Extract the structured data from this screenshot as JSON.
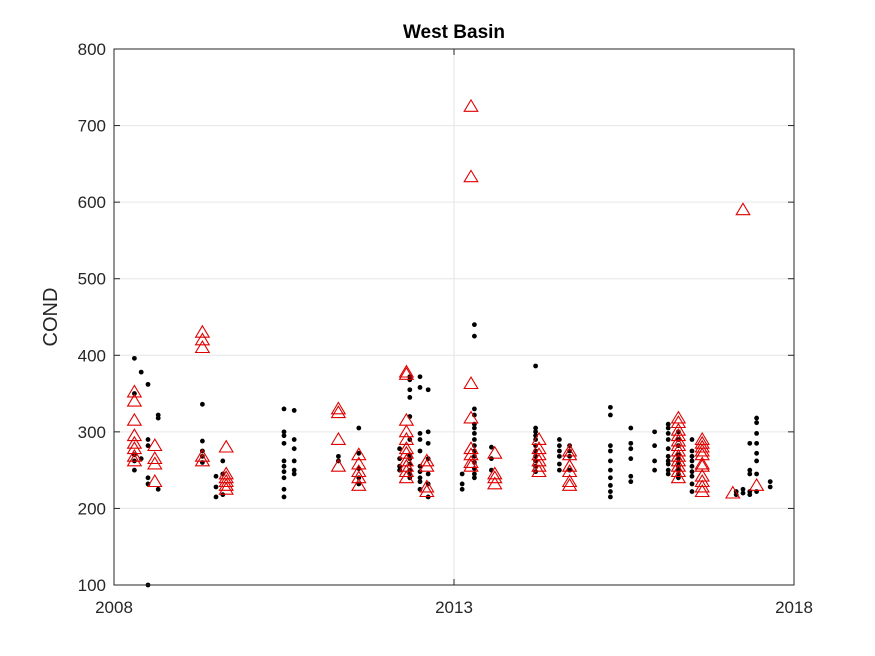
{
  "chart_data": {
    "type": "scatter",
    "title": "West Basin",
    "xlabel": "",
    "ylabel": "COND",
    "xlim": [
      2008,
      2018
    ],
    "ylim": [
      100,
      800
    ],
    "xticks": [
      2008,
      2013,
      2018
    ],
    "yticks": [
      100,
      200,
      300,
      400,
      500,
      600,
      700,
      800
    ],
    "grid": true,
    "colors": {
      "series_a": "#000000",
      "series_b": "#e00000",
      "grid": "#e6e6e6",
      "axis": "#262626"
    },
    "series": [
      {
        "marker": "dot",
        "points": [
          [
            2008.3,
            396
          ],
          [
            2008.3,
            350
          ],
          [
            2008.3,
            270
          ],
          [
            2008.3,
            262
          ],
          [
            2008.3,
            250
          ],
          [
            2008.4,
            378
          ],
          [
            2008.4,
            265
          ],
          [
            2008.5,
            362
          ],
          [
            2008.5,
            290
          ],
          [
            2008.5,
            282
          ],
          [
            2008.5,
            240
          ],
          [
            2008.5,
            232
          ],
          [
            2008.5,
            100
          ],
          [
            2008.65,
            322
          ],
          [
            2008.65,
            318
          ],
          [
            2008.65,
            225
          ],
          [
            2009.3,
            336
          ],
          [
            2009.3,
            288
          ],
          [
            2009.3,
            275
          ],
          [
            2009.3,
            268
          ],
          [
            2009.3,
            260
          ],
          [
            2009.5,
            242
          ],
          [
            2009.5,
            228
          ],
          [
            2009.5,
            215
          ],
          [
            2009.6,
            262
          ],
          [
            2009.6,
            245
          ],
          [
            2009.6,
            218
          ],
          [
            2010.5,
            330
          ],
          [
            2010.5,
            300
          ],
          [
            2010.5,
            295
          ],
          [
            2010.5,
            285
          ],
          [
            2010.5,
            262
          ],
          [
            2010.5,
            255
          ],
          [
            2010.5,
            248
          ],
          [
            2010.5,
            240
          ],
          [
            2010.5,
            225
          ],
          [
            2010.5,
            215
          ],
          [
            2010.65,
            328
          ],
          [
            2010.65,
            290
          ],
          [
            2010.65,
            278
          ],
          [
            2010.65,
            262
          ],
          [
            2010.65,
            250
          ],
          [
            2010.65,
            245
          ],
          [
            2011.3,
            268
          ],
          [
            2011.3,
            262
          ],
          [
            2011.6,
            305
          ],
          [
            2011.6,
            272
          ],
          [
            2011.6,
            252
          ],
          [
            2011.6,
            240
          ],
          [
            2011.6,
            232
          ],
          [
            2012.2,
            278
          ],
          [
            2012.2,
            265
          ],
          [
            2012.2,
            255
          ],
          [
            2012.2,
            250
          ],
          [
            2012.35,
            372
          ],
          [
            2012.35,
            368
          ],
          [
            2012.35,
            355
          ],
          [
            2012.35,
            345
          ],
          [
            2012.35,
            320
          ],
          [
            2012.35,
            290
          ],
          [
            2012.35,
            270
          ],
          [
            2012.35,
            265
          ],
          [
            2012.35,
            258
          ],
          [
            2012.35,
            250
          ],
          [
            2012.35,
            245
          ],
          [
            2012.35,
            240
          ],
          [
            2012.5,
            372
          ],
          [
            2012.5,
            358
          ],
          [
            2012.5,
            298
          ],
          [
            2012.5,
            290
          ],
          [
            2012.5,
            275
          ],
          [
            2012.5,
            255
          ],
          [
            2012.5,
            248
          ],
          [
            2012.5,
            240
          ],
          [
            2012.5,
            235
          ],
          [
            2012.5,
            225
          ],
          [
            2012.62,
            355
          ],
          [
            2012.62,
            300
          ],
          [
            2012.62,
            285
          ],
          [
            2012.62,
            265
          ],
          [
            2012.62,
            245
          ],
          [
            2012.62,
            232
          ],
          [
            2012.62,
            215
          ],
          [
            2013.12,
            245
          ],
          [
            2013.12,
            232
          ],
          [
            2013.12,
            225
          ],
          [
            2013.3,
            440
          ],
          [
            2013.3,
            425
          ],
          [
            2013.3,
            330
          ],
          [
            2013.3,
            322
          ],
          [
            2013.3,
            310
          ],
          [
            2013.3,
            305
          ],
          [
            2013.3,
            298
          ],
          [
            2013.3,
            290
          ],
          [
            2013.3,
            282
          ],
          [
            2013.3,
            275
          ],
          [
            2013.3,
            268
          ],
          [
            2013.3,
            260
          ],
          [
            2013.3,
            252
          ],
          [
            2013.3,
            245
          ],
          [
            2013.3,
            240
          ],
          [
            2013.55,
            280
          ],
          [
            2013.55,
            265
          ],
          [
            2013.55,
            250
          ],
          [
            2014.2,
            386
          ],
          [
            2014.2,
            305
          ],
          [
            2014.2,
            300
          ],
          [
            2014.2,
            295
          ],
          [
            2014.2,
            290
          ],
          [
            2014.2,
            282
          ],
          [
            2014.2,
            275
          ],
          [
            2014.2,
            268
          ],
          [
            2014.2,
            262
          ],
          [
            2014.2,
            255
          ],
          [
            2014.2,
            248
          ],
          [
            2014.55,
            290
          ],
          [
            2014.55,
            282
          ],
          [
            2014.55,
            275
          ],
          [
            2014.55,
            268
          ],
          [
            2014.55,
            258
          ],
          [
            2014.55,
            250
          ],
          [
            2014.7,
            282
          ],
          [
            2014.7,
            275
          ],
          [
            2014.7,
            268
          ],
          [
            2014.7,
            250
          ],
          [
            2015.3,
            332
          ],
          [
            2015.3,
            322
          ],
          [
            2015.3,
            282
          ],
          [
            2015.3,
            275
          ],
          [
            2015.3,
            262
          ],
          [
            2015.3,
            250
          ],
          [
            2015.3,
            240
          ],
          [
            2015.3,
            230
          ],
          [
            2015.3,
            222
          ],
          [
            2015.3,
            215
          ],
          [
            2015.6,
            305
          ],
          [
            2015.6,
            285
          ],
          [
            2015.6,
            278
          ],
          [
            2015.6,
            265
          ],
          [
            2015.6,
            242
          ],
          [
            2015.6,
            235
          ],
          [
            2015.95,
            300
          ],
          [
            2015.95,
            282
          ],
          [
            2015.95,
            262
          ],
          [
            2015.95,
            250
          ],
          [
            2016.15,
            310
          ],
          [
            2016.15,
            305
          ],
          [
            2016.15,
            298
          ],
          [
            2016.15,
            290
          ],
          [
            2016.15,
            278
          ],
          [
            2016.15,
            268
          ],
          [
            2016.15,
            262
          ],
          [
            2016.15,
            258
          ],
          [
            2016.15,
            250
          ],
          [
            2016.15,
            245
          ],
          [
            2016.3,
            300
          ],
          [
            2016.3,
            290
          ],
          [
            2016.3,
            282
          ],
          [
            2016.3,
            270
          ],
          [
            2016.3,
            265
          ],
          [
            2016.3,
            260
          ],
          [
            2016.3,
            255
          ],
          [
            2016.3,
            250
          ],
          [
            2016.3,
            245
          ],
          [
            2016.3,
            240
          ],
          [
            2016.5,
            290
          ],
          [
            2016.5,
            275
          ],
          [
            2016.5,
            268
          ],
          [
            2016.5,
            262
          ],
          [
            2016.5,
            255
          ],
          [
            2016.5,
            248
          ],
          [
            2016.5,
            242
          ],
          [
            2016.5,
            232
          ],
          [
            2016.5,
            222
          ],
          [
            2017.15,
            222
          ],
          [
            2017.15,
            218
          ],
          [
            2017.25,
            225
          ],
          [
            2017.25,
            220
          ],
          [
            2017.35,
            285
          ],
          [
            2017.35,
            250
          ],
          [
            2017.35,
            245
          ],
          [
            2017.35,
            222
          ],
          [
            2017.35,
            218
          ],
          [
            2017.45,
            318
          ],
          [
            2017.45,
            312
          ],
          [
            2017.45,
            298
          ],
          [
            2017.45,
            285
          ],
          [
            2017.45,
            272
          ],
          [
            2017.45,
            262
          ],
          [
            2017.45,
            245
          ],
          [
            2017.45,
            222
          ],
          [
            2017.65,
            235
          ],
          [
            2017.65,
            228
          ]
        ]
      },
      {
        "marker": "triangle",
        "points": [
          [
            2008.3,
            352
          ],
          [
            2008.3,
            340
          ],
          [
            2008.3,
            315
          ],
          [
            2008.3,
            295
          ],
          [
            2008.3,
            285
          ],
          [
            2008.3,
            278
          ],
          [
            2008.3,
            268
          ],
          [
            2008.3,
            262
          ],
          [
            2008.6,
            282
          ],
          [
            2008.6,
            265
          ],
          [
            2008.6,
            258
          ],
          [
            2008.6,
            235
          ],
          [
            2009.3,
            430
          ],
          [
            2009.3,
            420
          ],
          [
            2009.3,
            410
          ],
          [
            2009.3,
            268
          ],
          [
            2009.3,
            262
          ],
          [
            2009.65,
            280
          ],
          [
            2009.65,
            245
          ],
          [
            2009.65,
            240
          ],
          [
            2009.65,
            235
          ],
          [
            2009.65,
            230
          ],
          [
            2009.65,
            225
          ],
          [
            2011.3,
            330
          ],
          [
            2011.3,
            325
          ],
          [
            2011.3,
            290
          ],
          [
            2011.3,
            255
          ],
          [
            2011.6,
            270
          ],
          [
            2011.6,
            258
          ],
          [
            2011.6,
            248
          ],
          [
            2011.6,
            240
          ],
          [
            2011.6,
            230
          ],
          [
            2012.3,
            378
          ],
          [
            2012.3,
            375
          ],
          [
            2012.3,
            315
          ],
          [
            2012.3,
            300
          ],
          [
            2012.3,
            290
          ],
          [
            2012.3,
            278
          ],
          [
            2012.3,
            272
          ],
          [
            2012.3,
            262
          ],
          [
            2012.3,
            255
          ],
          [
            2012.3,
            248
          ],
          [
            2012.3,
            240
          ],
          [
            2012.6,
            262
          ],
          [
            2012.6,
            255
          ],
          [
            2012.6,
            228
          ],
          [
            2012.6,
            222
          ],
          [
            2013.25,
            725
          ],
          [
            2013.25,
            633
          ],
          [
            2013.25,
            363
          ],
          [
            2013.25,
            318
          ],
          [
            2013.25,
            278
          ],
          [
            2013.25,
            270
          ],
          [
            2013.25,
            260
          ],
          [
            2013.25,
            255
          ],
          [
            2013.6,
            272
          ],
          [
            2013.6,
            245
          ],
          [
            2013.6,
            240
          ],
          [
            2013.6,
            232
          ],
          [
            2014.25,
            290
          ],
          [
            2014.25,
            278
          ],
          [
            2014.25,
            270
          ],
          [
            2014.25,
            262
          ],
          [
            2014.25,
            255
          ],
          [
            2014.25,
            248
          ],
          [
            2014.7,
            275
          ],
          [
            2014.7,
            270
          ],
          [
            2014.7,
            255
          ],
          [
            2014.7,
            248
          ],
          [
            2014.7,
            235
          ],
          [
            2014.7,
            230
          ],
          [
            2016.3,
            318
          ],
          [
            2016.3,
            312
          ],
          [
            2016.3,
            302
          ],
          [
            2016.3,
            295
          ],
          [
            2016.3,
            288
          ],
          [
            2016.3,
            282
          ],
          [
            2016.3,
            275
          ],
          [
            2016.3,
            268
          ],
          [
            2016.3,
            262
          ],
          [
            2016.3,
            255
          ],
          [
            2016.3,
            248
          ],
          [
            2016.3,
            240
          ],
          [
            2016.65,
            290
          ],
          [
            2016.65,
            285
          ],
          [
            2016.65,
            280
          ],
          [
            2016.65,
            275
          ],
          [
            2016.65,
            270
          ],
          [
            2016.65,
            258
          ],
          [
            2016.65,
            255
          ],
          [
            2016.65,
            242
          ],
          [
            2016.65,
            235
          ],
          [
            2016.65,
            228
          ],
          [
            2016.65,
            222
          ],
          [
            2017.1,
            220
          ],
          [
            2017.25,
            590
          ],
          [
            2017.45,
            230
          ]
        ]
      }
    ]
  }
}
